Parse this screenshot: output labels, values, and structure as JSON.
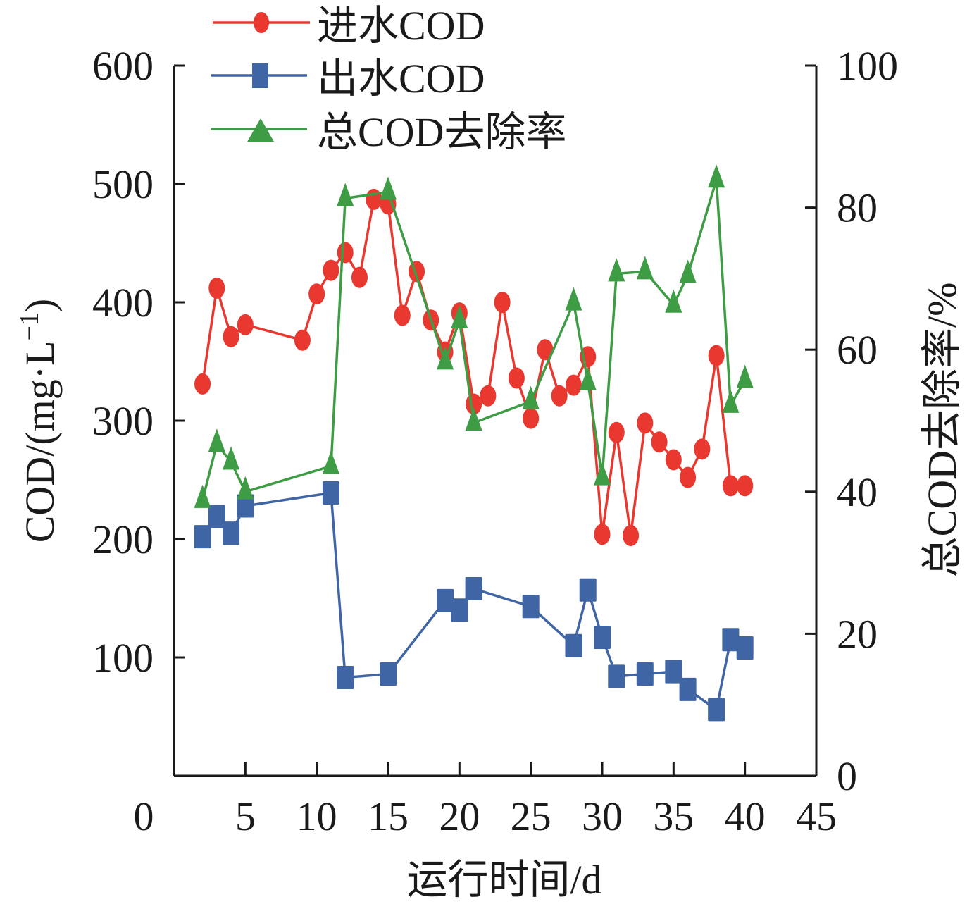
{
  "chart_data": {
    "type": "line",
    "title": "",
    "xlabel": "运行时间/d",
    "ylabel": "COD/(mg·L⁻¹)",
    "ylabel_base": "COD/(mg·L",
    "ylabel_sup": "−1",
    "ylabel_tail": ")",
    "y2label": "总COD去除率/%",
    "xlim": [
      0,
      45
    ],
    "ylim": [
      0,
      600
    ],
    "y2lim": [
      0,
      100
    ],
    "xticks": [
      0,
      5,
      10,
      15,
      20,
      25,
      30,
      35,
      40,
      45
    ],
    "yticks": [
      100,
      200,
      300,
      400,
      500,
      600
    ],
    "yticks_label_zero": "0",
    "y2ticks": [
      0,
      20,
      40,
      60,
      80,
      100
    ],
    "grid": false,
    "legend_position": "top-left",
    "series": [
      {
        "name": "进水COD",
        "axis": "left",
        "marker": "circle",
        "color": "#e8382f",
        "x": [
          2,
          3,
          4,
          5,
          9,
          10,
          11,
          12,
          13,
          14,
          15,
          16,
          17,
          18,
          19,
          20,
          21,
          22,
          23,
          24,
          25,
          26,
          27,
          28,
          29,
          30,
          31,
          32,
          33,
          34,
          35,
          36,
          37,
          38,
          39,
          40
        ],
        "values": [
          331,
          412,
          371,
          381,
          368,
          407,
          427,
          442,
          421,
          487,
          483,
          389,
          426,
          385,
          358,
          391,
          314,
          321,
          400,
          336,
          302,
          360,
          321,
          330,
          354,
          204,
          290,
          203,
          298,
          282,
          267,
          252,
          276,
          355,
          245,
          245
        ]
      },
      {
        "name": "出水COD",
        "axis": "left",
        "marker": "square",
        "color": "#4065a4",
        "x": [
          2,
          3,
          4,
          5,
          11,
          12,
          15,
          19,
          20,
          21,
          25,
          28,
          29,
          30,
          31,
          33,
          35,
          36,
          38,
          39,
          40
        ],
        "values": [
          202,
          219,
          205,
          228,
          239,
          83,
          86,
          148,
          140,
          158,
          143,
          110,
          157,
          117,
          84,
          86,
          88,
          73,
          56,
          115,
          108
        ]
      },
      {
        "name": "总COD去除率",
        "axis": "right",
        "marker": "triangle",
        "color": "#3e9c45",
        "x": [
          2,
          3,
          4,
          5,
          11,
          12,
          15,
          19,
          20,
          21,
          25,
          28,
          29,
          30,
          31,
          33,
          35,
          36,
          38,
          39,
          40
        ],
        "values": [
          38.8,
          46.7,
          44.2,
          40.0,
          43.6,
          81.3,
          82.2,
          58.3,
          64.1,
          49.7,
          52.7,
          66.6,
          55.4,
          42.0,
          70.7,
          71.0,
          66.3,
          70.5,
          83.9,
          52.2,
          55.7
        ]
      }
    ]
  }
}
